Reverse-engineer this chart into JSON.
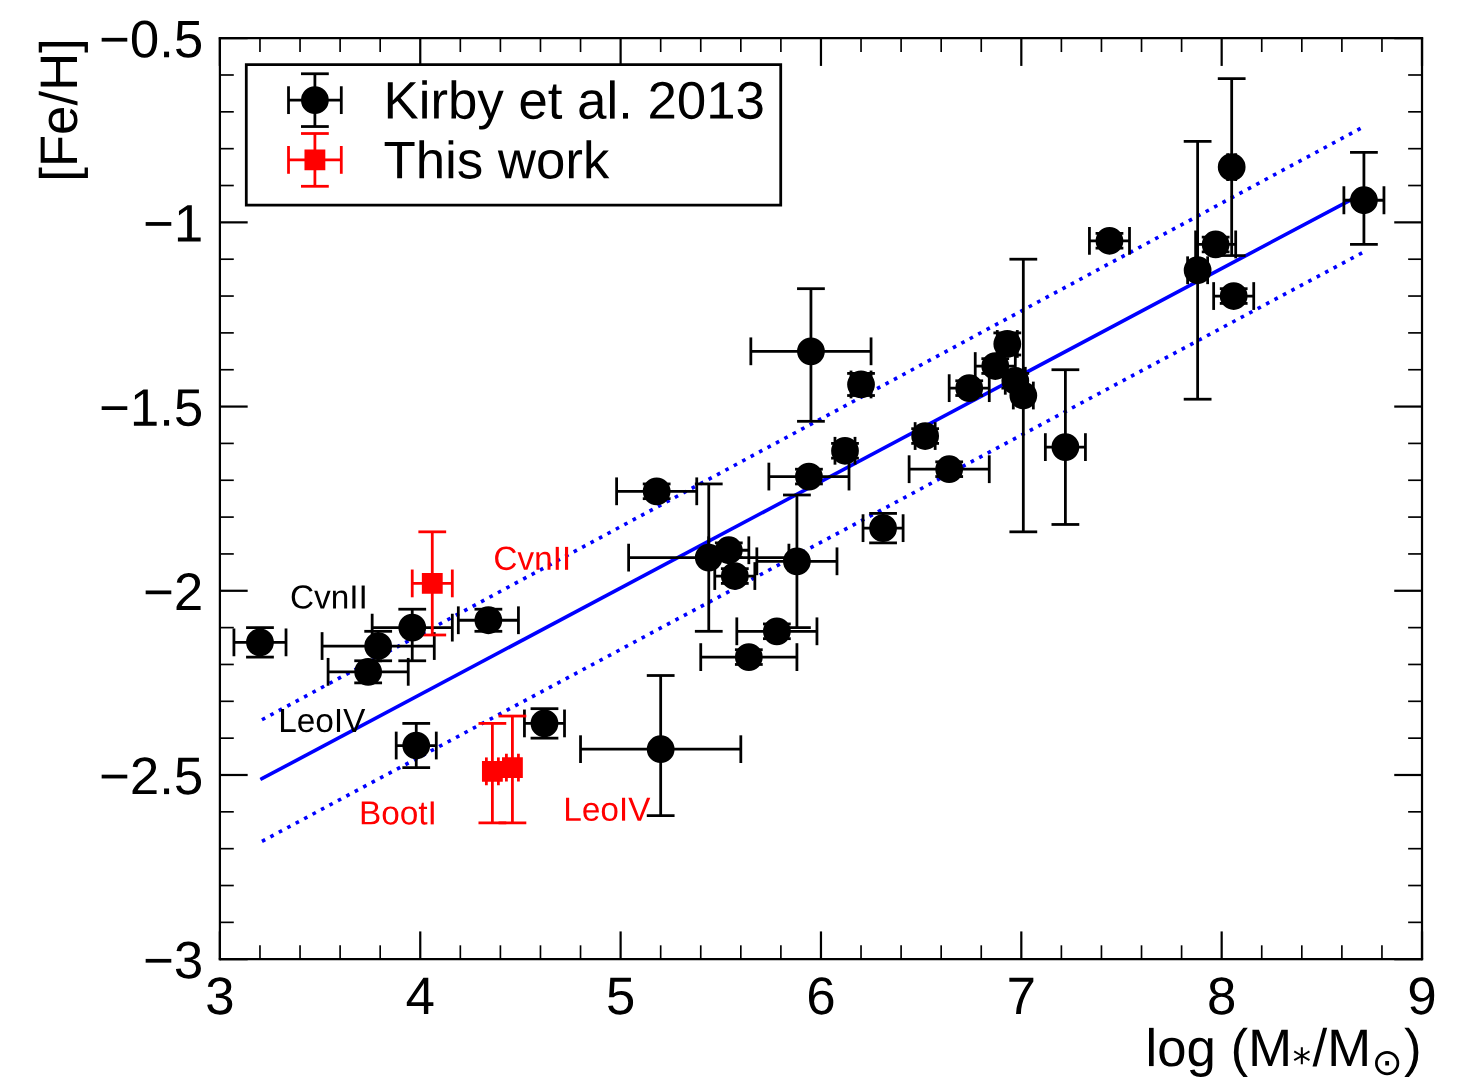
{
  "chart_data": {
    "type": "scatter",
    "xlabel": "log (M$_{*}$/M$_{⊙}$)",
    "ylabel": "[Fe/H]",
    "xlim": [
      3,
      9
    ],
    "ylim": [
      -3,
      -0.5
    ],
    "xticks": [
      3,
      4,
      5,
      6,
      7,
      8,
      9
    ],
    "yticks": [
      {
        "value": -3,
        "label": "−3"
      },
      {
        "value": -2.5,
        "label": "−2.5"
      },
      {
        "value": -2,
        "label": "−2"
      },
      {
        "value": -1.5,
        "label": "−1.5"
      },
      {
        "value": -1,
        "label": "−1"
      },
      {
        "value": -0.5,
        "label": "−0.5"
      }
    ],
    "grid": false,
    "legend": "top left",
    "series": [
      {
        "name": "Kirby et al. 2013",
        "color": "#000000",
        "marker": "circle",
        "x": [
          3.2,
          3.74,
          3.79,
          3.96,
          4.34,
          3.98,
          4.62,
          5.95,
          6.2,
          5.18,
          6.12,
          5.94,
          5.44,
          5.54,
          5.57,
          5.88,
          5.78,
          5.64,
          5.2,
          6.31,
          6.52,
          6.64,
          6.74,
          6.93,
          6.87,
          6.97,
          7.01,
          7.22,
          7.44,
          7.88,
          7.97,
          8.05,
          8.06,
          8.71
        ],
        "values": [
          -2.14,
          -2.22,
          -2.15,
          -2.1,
          -2.08,
          -2.42,
          -2.36,
          -1.35,
          -1.44,
          -1.73,
          -1.62,
          -1.69,
          -1.91,
          -1.89,
          -1.96,
          -1.92,
          -2.11,
          -2.18,
          -2.43,
          -1.83,
          -1.58,
          -1.67,
          -1.45,
          -1.33,
          -1.39,
          -1.43,
          -1.47,
          -1.61,
          -1.05,
          -1.13,
          -1.06,
          -0.85,
          -1.2,
          -0.94
        ],
        "errors": [
          0.04,
          0.03,
          0.04,
          [
            -2.19,
            -2.05
          ],
          0.03,
          0.06,
          0.04,
          [
            -1.54,
            -1.18
          ],
          0.03,
          0.02,
          0.02,
          0.02,
          [
            -2.11,
            -1.71
          ],
          0.02,
          0.02,
          [
            -2.1,
            -1.74
          ],
          0.02,
          0.02,
          [
            -2.61,
            -2.23
          ],
          0.04,
          0.02,
          0.02,
          0.02,
          0.03,
          0.02,
          0.02,
          [
            -1.84,
            -1.1
          ],
          [
            -1.82,
            -1.4
          ],
          0.02,
          [
            -1.48,
            -0.78
          ],
          0.02,
          [
            -1.09,
            -0.61
          ],
          0.02,
          [
            -1.06,
            -0.81
          ]
        ],
        "xerrors": [
          0.13,
          0.2,
          0.28,
          0.2,
          0.15,
          0.1,
          0.1,
          0.3,
          0.05,
          0.2,
          0.05,
          0.2,
          0.4,
          0.1,
          0.1,
          0.2,
          0.2,
          0.24,
          0.4,
          0.1,
          0.05,
          0.2,
          0.1,
          0.05,
          0.1,
          0.05,
          0.05,
          0.1,
          0.1,
          0.05,
          0.1,
          0.02,
          0.1,
          0.1
        ]
      },
      {
        "name": "This work",
        "color": "#ff0000",
        "marker": "square",
        "x": [
          4.06,
          4.36,
          4.46
        ],
        "values": [
          -1.98,
          -2.49,
          -2.48
        ],
        "errors": [
          [
            -2.12,
            -1.84
          ],
          [
            -2.63,
            -2.36
          ],
          [
            -2.63,
            -2.34
          ]
        ],
        "xerrors": [
          0.1,
          0.03,
          0.03
        ]
      },
      {
        "type": "line",
        "color": "#0000ff",
        "line_style": "solid",
        "x": [
          3.21,
          8.71
        ],
        "values": [
          -2.51,
          -0.92
        ]
      },
      {
        "type": "line",
        "color": "#0000ff",
        "line_style": "dotted",
        "x": [
          3.21,
          8.71
        ],
        "values": [
          -2.35,
          -0.74
        ]
      },
      {
        "type": "line",
        "color": "#0000ff",
        "line_style": "dotted",
        "x": [
          3.21,
          8.71
        ],
        "values": [
          -2.68,
          -1.08
        ]
      }
    ],
    "annotations": [
      {
        "text": "CvnII",
        "x": 3.96,
        "y": -2.1
      },
      {
        "text": "LeoIV",
        "x": 3.98,
        "y": -2.42
      },
      {
        "text": "CvnII",
        "x": 4.06,
        "y": -1.98
      },
      {
        "text": "BootI",
        "x": 4.36,
        "y": -2.49
      },
      {
        "text": "LeoIV",
        "x": 4.46,
        "y": -2.48
      }
    ]
  }
}
